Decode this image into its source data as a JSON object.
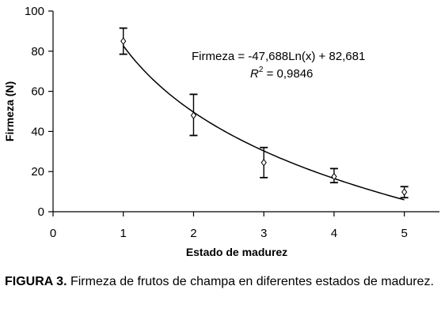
{
  "chart_data": {
    "type": "scatter",
    "xlabel": "Estado de madurez",
    "ylabel": "Firmeza (N)",
    "xlim": [
      0,
      5.5
    ],
    "ylim": [
      0,
      100
    ],
    "x_ticks": [
      "0",
      "1",
      "2",
      "3",
      "4",
      "5"
    ],
    "y_ticks": [
      "0",
      "20",
      "40",
      "60",
      "80",
      "100"
    ],
    "series": [
      {
        "x": [
          1,
          2,
          3,
          4,
          5
        ],
        "y": [
          85,
          48,
          24.5,
          17.5,
          9.8
        ],
        "error_low": [
          78.5,
          38,
          17,
          14.5,
          7
        ],
        "error_high": [
          91.5,
          58.5,
          32,
          21.5,
          12.5
        ]
      }
    ],
    "trendline": {
      "type": "logarithmic",
      "a": -47.688,
      "b": 82.681,
      "equation": "Firmeza = -47,688Ln(x) + 82,681",
      "r2_label": "R",
      "r2_sup": "2",
      "r2_value": " = 0,9846"
    },
    "grid": false
  },
  "caption": {
    "label": "FIGURA 3.",
    "text": " Firmeza de frutos de champa en diferentes estados de madurez."
  }
}
